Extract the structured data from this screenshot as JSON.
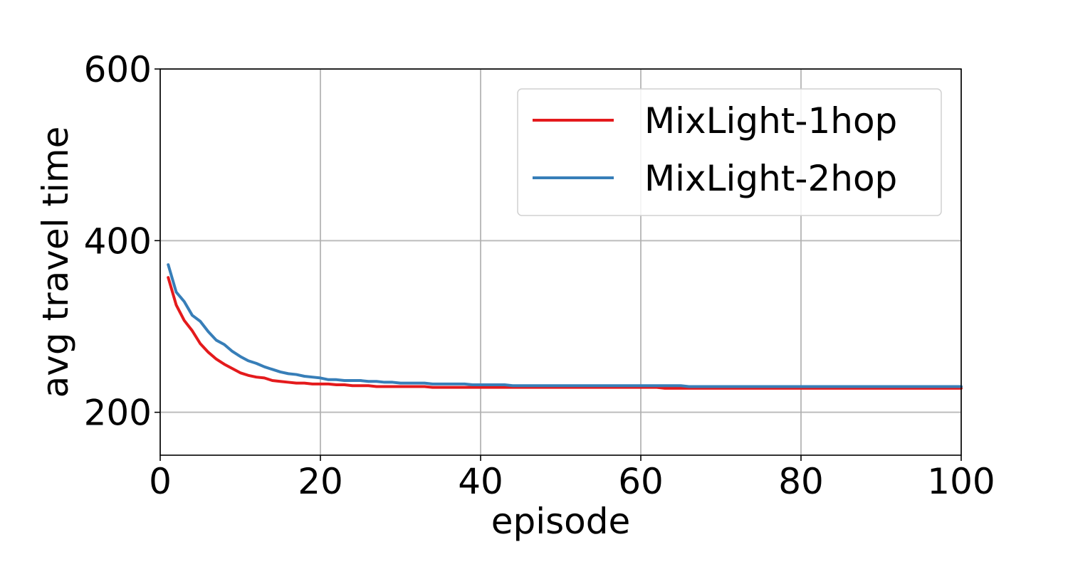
{
  "chart_data": {
    "type": "line",
    "title": "",
    "xlabel": "episode",
    "ylabel": "avg travel time",
    "xlim": [
      0,
      100
    ],
    "ylim": [
      150,
      600
    ],
    "xticks": [
      0,
      20,
      40,
      60,
      80,
      100
    ],
    "yticks": [
      200,
      400,
      600
    ],
    "grid": true,
    "legend_position": "upper-right",
    "series": [
      {
        "name": "MixLight-1hop",
        "color": "#e41a1c",
        "x": [
          1,
          2,
          3,
          4,
          5,
          6,
          7,
          8,
          9,
          10,
          11,
          12,
          13,
          14,
          15,
          16,
          17,
          18,
          19,
          20,
          21,
          22,
          23,
          24,
          25,
          26,
          27,
          28,
          29,
          30,
          31,
          32,
          33,
          34,
          35,
          36,
          37,
          38,
          39,
          40,
          41,
          42,
          43,
          44,
          45,
          46,
          47,
          48,
          49,
          50,
          51,
          52,
          53,
          54,
          55,
          56,
          57,
          58,
          59,
          60,
          61,
          62,
          63,
          64,
          65,
          66,
          67,
          68,
          69,
          70,
          71,
          72,
          73,
          74,
          75,
          76,
          77,
          78,
          79,
          80,
          81,
          82,
          83,
          84,
          85,
          86,
          87,
          88,
          89,
          90,
          91,
          92,
          93,
          94,
          95,
          96,
          97,
          98,
          99,
          100
        ],
        "y": [
          357,
          325,
          307,
          295,
          280,
          270,
          262,
          256,
          251,
          246,
          243,
          241,
          240,
          237,
          236,
          235,
          234,
          234,
          233,
          233,
          233,
          232,
          232,
          231,
          231,
          231,
          230,
          230,
          230,
          230,
          230,
          230,
          230,
          229,
          229,
          229,
          229,
          229,
          229,
          229,
          229,
          229,
          229,
          229,
          229,
          229,
          229,
          229,
          229,
          229,
          229,
          229,
          229,
          229,
          229,
          229,
          229,
          229,
          229,
          229,
          229,
          229,
          228,
          228,
          228,
          228,
          228,
          228,
          228,
          228,
          228,
          228,
          228,
          228,
          228,
          228,
          228,
          228,
          228,
          228,
          228,
          228,
          228,
          228,
          228,
          228,
          228,
          228,
          228,
          228,
          228,
          228,
          228,
          228,
          228,
          228,
          228,
          228,
          228,
          228
        ]
      },
      {
        "name": "MixLight-2hop",
        "color": "#377eb8",
        "x": [
          1,
          2,
          3,
          4,
          5,
          6,
          7,
          8,
          9,
          10,
          11,
          12,
          13,
          14,
          15,
          16,
          17,
          18,
          19,
          20,
          21,
          22,
          23,
          24,
          25,
          26,
          27,
          28,
          29,
          30,
          31,
          32,
          33,
          34,
          35,
          36,
          37,
          38,
          39,
          40,
          41,
          42,
          43,
          44,
          45,
          46,
          47,
          48,
          49,
          50,
          51,
          52,
          53,
          54,
          55,
          56,
          57,
          58,
          59,
          60,
          61,
          62,
          63,
          64,
          65,
          66,
          67,
          68,
          69,
          70,
          71,
          72,
          73,
          74,
          75,
          76,
          77,
          78,
          79,
          80,
          81,
          82,
          83,
          84,
          85,
          86,
          87,
          88,
          89,
          90,
          91,
          92,
          93,
          94,
          95,
          96,
          97,
          98,
          99,
          100
        ],
        "y": [
          372,
          340,
          329,
          313,
          306,
          294,
          284,
          279,
          271,
          265,
          260,
          257,
          253,
          250,
          247,
          245,
          244,
          242,
          241,
          240,
          238,
          238,
          237,
          237,
          237,
          236,
          236,
          235,
          235,
          234,
          234,
          234,
          234,
          233,
          233,
          233,
          233,
          233,
          232,
          232,
          232,
          232,
          232,
          231,
          231,
          231,
          231,
          231,
          231,
          231,
          231,
          231,
          231,
          231,
          231,
          231,
          231,
          231,
          231,
          231,
          231,
          231,
          231,
          231,
          231,
          230,
          230,
          230,
          230,
          230,
          230,
          230,
          230,
          230,
          230,
          230,
          230,
          230,
          230,
          230,
          230,
          230,
          230,
          230,
          230,
          230,
          230,
          230,
          230,
          230,
          230,
          230,
          230,
          230,
          230,
          230,
          230,
          230,
          230,
          230
        ]
      }
    ]
  }
}
